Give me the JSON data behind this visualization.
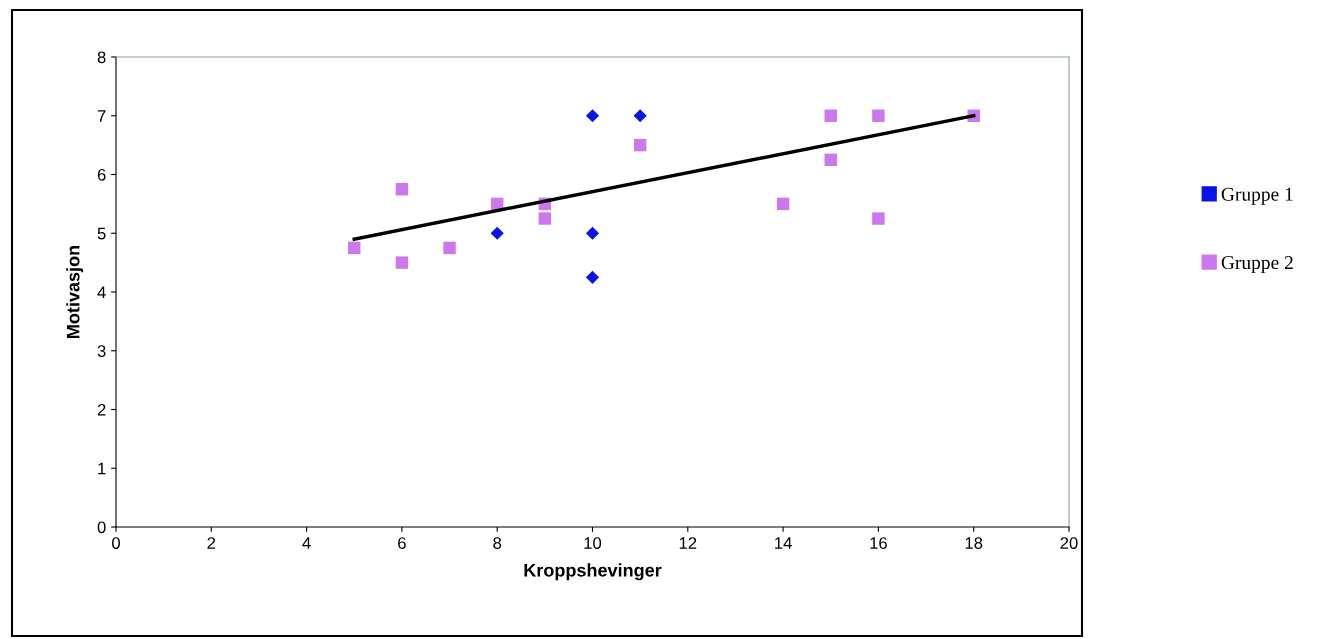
{
  "chart_data": {
    "type": "scatter",
    "xlabel": "Kroppshevinger",
    "ylabel": "Motivasjon",
    "xlim": [
      0,
      20
    ],
    "xticks": [
      0,
      2,
      4,
      6,
      8,
      10,
      12,
      14,
      16,
      18,
      20
    ],
    "ylim": [
      0,
      8
    ],
    "yticks": [
      0,
      1,
      2,
      3,
      4,
      5,
      6,
      7,
      8
    ],
    "grid": false,
    "legend": "right",
    "series": [
      {
        "name": "Gruppe 1",
        "color": "#0a14e6",
        "marker": "diamond",
        "x": [
          8,
          10,
          10,
          10,
          11
        ],
        "values": [
          5,
          7,
          5,
          4.25,
          7
        ]
      },
      {
        "name": "Gruppe 2",
        "color": "#cc77ee",
        "marker": "square",
        "x": [
          5,
          6,
          6,
          7,
          8,
          9,
          9,
          11,
          14,
          15,
          15,
          16,
          16,
          18
        ],
        "values": [
          4.75,
          5.75,
          4.5,
          4.75,
          5.5,
          5.5,
          5.25,
          6.5,
          5.5,
          7,
          6.25,
          7,
          5.25,
          7
        ]
      },
      {
        "type": "line",
        "color": "#000000",
        "marker": "none",
        "x": [
          5,
          18
        ],
        "values": [
          4.9,
          7.0
        ]
      }
    ]
  }
}
